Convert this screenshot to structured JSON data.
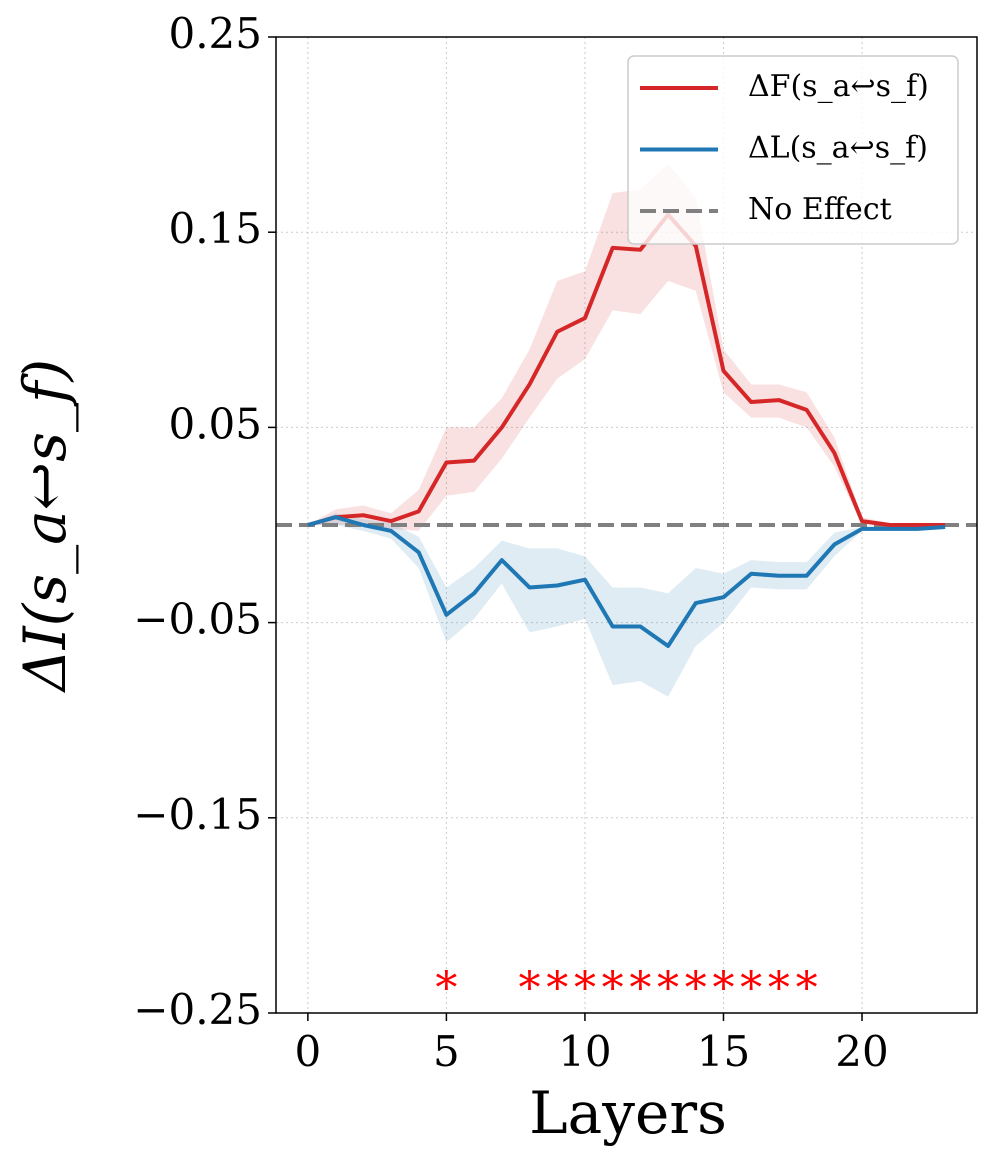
{
  "chart_data": {
    "type": "line",
    "xlabel": "Layers",
    "ylabel": "ΔI(s_a↩s_f)",
    "x": [
      0,
      1,
      2,
      3,
      4,
      5,
      6,
      7,
      8,
      9,
      10,
      11,
      12,
      13,
      14,
      15,
      16,
      17,
      18,
      19,
      20,
      21,
      22,
      23
    ],
    "series": [
      {
        "name": "ΔF(s_a↩s_f)",
        "color": "#d62728",
        "values": [
          0,
          0.004,
          0.005,
          0.002,
          0.007,
          0.032,
          0.033,
          0.05,
          0.072,
          0.099,
          0.106,
          0.142,
          0.141,
          0.159,
          0.143,
          0.079,
          0.063,
          0.064,
          0.059,
          0.037,
          0.002,
          0,
          0,
          0
        ],
        "upper": [
          0,
          0.008,
          0.01,
          0.006,
          0.018,
          0.05,
          0.05,
          0.065,
          0.09,
          0.125,
          0.13,
          0.17,
          0.172,
          0.185,
          0.168,
          0.09,
          0.072,
          0.072,
          0.068,
          0.045,
          0.004,
          0.001,
          0.001,
          0.001
        ],
        "lower": [
          0,
          0,
          0,
          -0.002,
          -0.003,
          0.015,
          0.017,
          0.034,
          0.055,
          0.075,
          0.085,
          0.11,
          0.108,
          0.125,
          0.12,
          0.068,
          0.055,
          0.055,
          0.05,
          0.03,
          0,
          -0.001,
          -0.001,
          -0.001
        ]
      },
      {
        "name": "ΔL(s_a↩s_f)",
        "color": "#1f77b4",
        "values": [
          0,
          0.004,
          0,
          -0.003,
          -0.014,
          -0.046,
          -0.035,
          -0.018,
          -0.032,
          -0.031,
          -0.028,
          -0.052,
          -0.052,
          -0.062,
          -0.04,
          -0.037,
          -0.025,
          -0.026,
          -0.026,
          -0.01,
          -0.002,
          -0.002,
          -0.002,
          -0.001
        ],
        "upper": [
          0,
          0.006,
          0.003,
          0.001,
          -0.006,
          -0.032,
          -0.022,
          -0.008,
          -0.012,
          -0.012,
          -0.016,
          -0.032,
          -0.032,
          -0.035,
          -0.022,
          -0.025,
          -0.018,
          -0.019,
          -0.019,
          -0.004,
          -0.001,
          -0.001,
          -0.001,
          0
        ],
        "lower": [
          0,
          0,
          -0.003,
          -0.007,
          -0.022,
          -0.06,
          -0.048,
          -0.03,
          -0.055,
          -0.052,
          -0.048,
          -0.082,
          -0.08,
          -0.088,
          -0.062,
          -0.05,
          -0.032,
          -0.033,
          -0.033,
          -0.016,
          -0.003,
          -0.003,
          -0.003,
          -0.002
        ]
      }
    ],
    "reference_line": {
      "name": "No Effect",
      "y": 0,
      "color": "#808080"
    },
    "significance": {
      "label": "*",
      "color": "#ff0000",
      "y": -0.235,
      "layers": [
        5,
        8,
        9,
        10,
        11,
        12,
        13,
        14,
        15,
        16,
        17,
        18
      ]
    },
    "xlim": [
      -1.15,
      24.15
    ],
    "ylim": [
      -0.25,
      0.25
    ],
    "xticks": [
      0,
      5,
      10,
      15,
      20
    ],
    "yticks": [
      {
        "value": -0.25,
        "label": "−0.25"
      },
      {
        "value": -0.15,
        "label": "−0.15"
      },
      {
        "value": -0.05,
        "label": "−0.05"
      },
      0.05,
      0.15,
      0.25
    ],
    "grid": true,
    "legend": "upper right"
  }
}
